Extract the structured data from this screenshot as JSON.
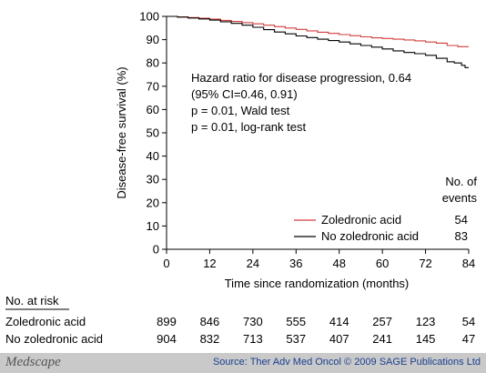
{
  "chart_data": {
    "type": "line",
    "ylabel": "Disease-free survival (%)",
    "xlabel": "Time since randomization (months)",
    "xlim": [
      0,
      84
    ],
    "ylim": [
      0,
      100
    ],
    "x_ticks": [
      "0",
      "12",
      "24",
      "36",
      "48",
      "60",
      "72",
      "84"
    ],
    "y_ticks": [
      "0",
      "10",
      "20",
      "30",
      "40",
      "50",
      "60",
      "70",
      "80",
      "90",
      "100"
    ],
    "grid": false,
    "annotation_lines": [
      "Hazard ratio for disease progression, 0.64",
      "(95% CI=0.46, 0.91)",
      "p = 0.01, Wald test",
      "p = 0.01, log-rank test"
    ],
    "events_header": [
      "No. of",
      "events"
    ],
    "series": [
      {
        "name": "Zoledronic acid",
        "color": "#d33c3c",
        "events": "54",
        "x": [
          0,
          3,
          6,
          9,
          12,
          15,
          18,
          21,
          24,
          27,
          30,
          33,
          36,
          39,
          42,
          45,
          48,
          51,
          54,
          57,
          60,
          63,
          66,
          69,
          72,
          75,
          78,
          81,
          84
        ],
        "y": [
          100,
          99.8,
          99.5,
          99.2,
          98.8,
          98.3,
          97.8,
          97.3,
          96.8,
          96.2,
          95.6,
          95.0,
          94.4,
          93.8,
          93.2,
          92.7,
          92.2,
          91.7,
          91.2,
          90.8,
          90.5,
          90.2,
          89.9,
          89.5,
          89.0,
          88.5,
          87.5,
          87.0,
          87.0
        ]
      },
      {
        "name": "No zoledronic acid",
        "color": "#000000",
        "events": "83",
        "x": [
          0,
          3,
          6,
          9,
          12,
          15,
          18,
          21,
          24,
          27,
          30,
          33,
          36,
          39,
          42,
          45,
          48,
          51,
          54,
          57,
          60,
          63,
          66,
          69,
          72,
          75,
          78,
          80,
          82,
          83,
          84
        ],
        "y": [
          100,
          99.7,
          99.3,
          98.9,
          98.4,
          97.7,
          97.0,
          96.2,
          95.3,
          94.3,
          93.3,
          92.5,
          91.6,
          90.9,
          90.2,
          89.6,
          89.0,
          88.2,
          87.5,
          86.8,
          86.0,
          85.2,
          84.5,
          84.0,
          83.3,
          82.0,
          80.5,
          80.0,
          79.0,
          78.0,
          78.0
        ]
      }
    ],
    "at_risk": {
      "header": "No. at risk",
      "rows": [
        {
          "label": "Zoledronic acid",
          "values": [
            "899",
            "846",
            "730",
            "555",
            "414",
            "257",
            "123",
            "54"
          ]
        },
        {
          "label": "No zoledronic acid",
          "values": [
            "904",
            "832",
            "713",
            "537",
            "407",
            "241",
            "145",
            "47"
          ]
        }
      ]
    }
  },
  "footer": {
    "brand": "Medscape",
    "source": "Source: Ther Adv Med Oncol © 2009 SAGE Publications Ltd"
  }
}
